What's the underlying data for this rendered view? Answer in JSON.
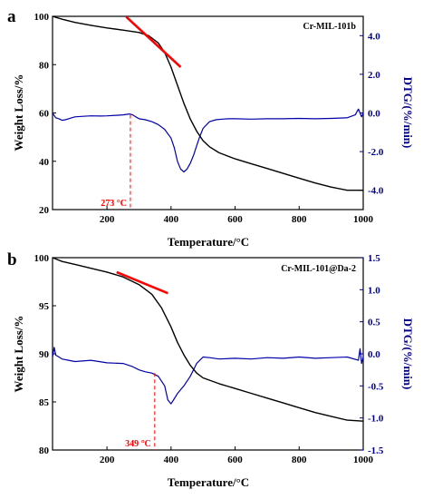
{
  "chart_data": [
    {
      "type": "line",
      "panel_label": "a",
      "title": "Cr-MIL-101b",
      "xlabel": "Temperature/°C",
      "ylabel": "Weight Loss/%",
      "ylabel_right": "DTG/(%/min)",
      "xlim": [
        30,
        1000
      ],
      "ylim": [
        20,
        100
      ],
      "ylim_right": [
        -5,
        5
      ],
      "xticks": [
        "200",
        "400",
        "600",
        "800",
        "1000"
      ],
      "xtick_values": [
        200,
        400,
        600,
        800,
        1000
      ],
      "yticks": [
        "20",
        "40",
        "60",
        "80",
        "100"
      ],
      "ytick_values": [
        20,
        40,
        60,
        80,
        100
      ],
      "yticks_right": [
        "-4.0",
        "-2.0",
        "0.0",
        "2.0",
        "4.0"
      ],
      "ytick_values_right": [
        -4,
        -2,
        0,
        2,
        4
      ],
      "colors": {
        "weight": "#000000",
        "dtg": "#0000aa",
        "annotation": "#ff0000"
      },
      "series": [
        {
          "axis": "left",
          "x": [
            30,
            60,
            100,
            150,
            200,
            250,
            300,
            330,
            360,
            380,
            400,
            420,
            440,
            460,
            480,
            500,
            520,
            550,
            600,
            650,
            700,
            750,
            800,
            850,
            900,
            950,
            1000
          ],
          "values": [
            100,
            98.8,
            97.5,
            96.3,
            95.2,
            94.3,
            93.3,
            92.0,
            89.0,
            85.0,
            79.0,
            71.5,
            64.0,
            57.5,
            52.5,
            48.5,
            46.0,
            43.5,
            41.0,
            39.0,
            37.0,
            35.0,
            33.0,
            31.0,
            29.3,
            28.0,
            28.0
          ]
        },
        {
          "axis": "right",
          "x": [
            30,
            40,
            50,
            60,
            70,
            80,
            90,
            100,
            120,
            150,
            180,
            200,
            230,
            250,
            270,
            280,
            290,
            300,
            320,
            340,
            360,
            380,
            400,
            410,
            420,
            430,
            440,
            450,
            460,
            470,
            480,
            490,
            500,
            520,
            540,
            560,
            580,
            600,
            650,
            700,
            750,
            800,
            850,
            900,
            950,
            975,
            985,
            995,
            1000
          ],
          "values": [
            0.0,
            -0.25,
            -0.3,
            -0.38,
            -0.35,
            -0.3,
            -0.25,
            -0.2,
            -0.18,
            -0.15,
            -0.16,
            -0.15,
            -0.12,
            -0.1,
            -0.05,
            -0.1,
            -0.2,
            -0.3,
            -0.35,
            -0.45,
            -0.6,
            -0.85,
            -1.3,
            -1.8,
            -2.5,
            -2.9,
            -3.05,
            -2.9,
            -2.6,
            -2.2,
            -1.7,
            -1.2,
            -0.8,
            -0.45,
            -0.35,
            -0.32,
            -0.3,
            -0.3,
            -0.32,
            -0.3,
            -0.3,
            -0.28,
            -0.3,
            -0.28,
            -0.25,
            -0.1,
            0.2,
            -0.2,
            0.0
          ]
        }
      ],
      "tangent": {
        "x": [
          260,
          430
        ],
        "values": [
          99.8,
          79.0
        ]
      },
      "annotation": {
        "label": "273 °C",
        "x": 273,
        "dtg_value": -0.1
      }
    },
    {
      "type": "line",
      "panel_label": "b",
      "title": "Cr-MIL-101@Da-2",
      "xlabel": "Temperature/°C",
      "ylabel": "Weight Loss/%",
      "ylabel_right": "DTG/(%/min)",
      "xlim": [
        30,
        1000
      ],
      "ylim": [
        80,
        100
      ],
      "ylim_right": [
        -1.5,
        1.5
      ],
      "xticks": [
        "200",
        "400",
        "600",
        "800",
        "1000"
      ],
      "xtick_values": [
        200,
        400,
        600,
        800,
        1000
      ],
      "yticks": [
        "80",
        "85",
        "90",
        "95",
        "100"
      ],
      "ytick_values": [
        80,
        85,
        90,
        95,
        100
      ],
      "yticks_right": [
        "-1.5",
        "-1.0",
        "-0.5",
        "0.0",
        "0.5",
        "1.0",
        "1.5"
      ],
      "ytick_values_right": [
        -1.5,
        -1,
        -0.5,
        0,
        0.5,
        1,
        1.5
      ],
      "colors": {
        "weight": "#000000",
        "dtg": "#0000aa",
        "annotation": "#ff0000"
      },
      "series": [
        {
          "axis": "left",
          "x": [
            30,
            60,
            100,
            150,
            200,
            250,
            300,
            340,
            370,
            400,
            420,
            440,
            460,
            480,
            500,
            550,
            600,
            650,
            700,
            750,
            800,
            850,
            900,
            950,
            1000
          ],
          "values": [
            100,
            99.6,
            99.3,
            98.9,
            98.5,
            98.0,
            97.2,
            96.2,
            94.8,
            92.8,
            91.2,
            89.9,
            88.8,
            88.0,
            87.5,
            86.9,
            86.4,
            85.9,
            85.4,
            84.9,
            84.4,
            83.9,
            83.5,
            83.1,
            83.0
          ]
        },
        {
          "axis": "right",
          "x": [
            30,
            35,
            40,
            50,
            60,
            80,
            100,
            150,
            200,
            250,
            280,
            300,
            320,
            340,
            360,
            380,
            390,
            400,
            410,
            420,
            440,
            460,
            480,
            500,
            520,
            550,
            600,
            650,
            700,
            750,
            800,
            850,
            900,
            950,
            985,
            990,
            995,
            1000
          ],
          "values": [
            -0.05,
            0.1,
            -0.02,
            -0.05,
            -0.08,
            -0.1,
            -0.12,
            -0.1,
            -0.14,
            -0.15,
            -0.2,
            -0.25,
            -0.28,
            -0.3,
            -0.35,
            -0.5,
            -0.72,
            -0.78,
            -0.7,
            -0.62,
            -0.5,
            -0.35,
            -0.15,
            -0.05,
            -0.06,
            -0.08,
            -0.07,
            -0.08,
            -0.06,
            -0.07,
            -0.05,
            -0.07,
            -0.06,
            -0.05,
            -0.1,
            0.08,
            -0.15,
            -0.05
          ]
        }
      ],
      "tangent": {
        "x": [
          230,
          390
        ],
        "values": [
          98.5,
          96.3
        ]
      },
      "annotation": {
        "label": "349 °C",
        "x": 349,
        "dtg_value": -0.3
      }
    }
  ]
}
